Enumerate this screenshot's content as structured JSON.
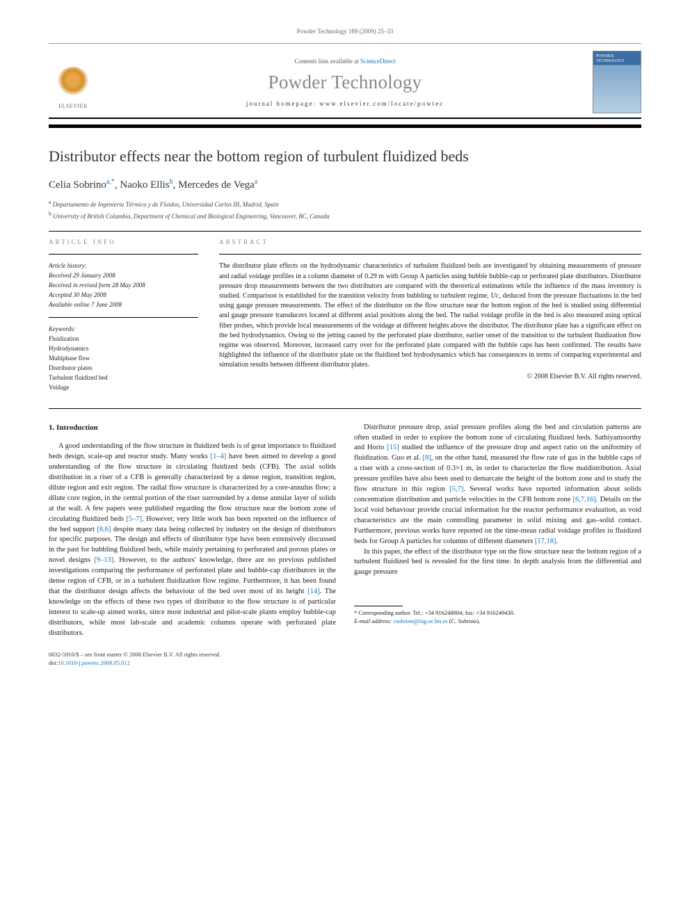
{
  "journal_ref": "Powder Technology 189 (2009) 25–33",
  "contents_prefix": "Contents lists available at ",
  "contents_link": "ScienceDirect",
  "journal_name": "Powder Technology",
  "homepage_prefix": "journal homepage: ",
  "homepage_url": "www.elsevier.com/locate/powtec",
  "publisher_label": "ELSEVIER",
  "cover_label": "POWDER TECHNOLOGY",
  "article_title": "Distributor effects near the bottom region of turbulent fluidized beds",
  "authors_html": "Celia Sobrino",
  "author1": "Celia Sobrino",
  "author1_sup": "a,",
  "author1_star": "*",
  "author2": "Naoko Ellis",
  "author2_sup": "b",
  "author3": "Mercedes de Vega",
  "author3_sup": "a",
  "aff_a": "Departamento de Ingeniería Térmica y de Fluidos, Universidad Carlos III, Madrid, Spain",
  "aff_b": "University of British Columbia, Department of Chemical and Biological Engineering, Vancouver, BC, Canada",
  "article_info_label": "ARTICLE INFO",
  "abstract_label": "ABSTRACT",
  "history_label": "Article history:",
  "history": {
    "received": "Received 29 January 2008",
    "revised": "Received in revised form 28 May 2008",
    "accepted": "Accepted 30 May 2008",
    "online": "Available online 7 June 2008"
  },
  "keywords_label": "Keywords:",
  "keywords": {
    "k1": "Fluidization",
    "k2": "Hydrodynamics",
    "k3": "Multiphase flow",
    "k4": "Distributor plates",
    "k5": "Turbulent fluidized bed",
    "k6": "Voidage"
  },
  "abstract_p1": "The distributor plate effects on the hydrodynamic characteristics of turbulent fluidized beds are investigated by obtaining measurements of pressure and radial voidage profiles in a column diameter of 0.29 m with Group A particles using bubble bubble-cap or perforated plate distributors. Distributor pressure drop measurements between the two distributors are compared with the theoretical estimations while the influence of the mass inventory is studied. Comparison is established for the transition velocity from bubbling to turbulent regime, ",
  "abstract_uc": "Uc",
  "abstract_p1b": ", deduced from the pressure fluctuations in the bed using gauge pressure measurements. The effect of the distributor on the flow structure near the bottom region of the bed is studied using differential and gauge pressure transducers located at different axial positions along the bed. The radial voidage profile in the bed is also measured using optical fiber probes, which provide local measurements of the voidage at different heights above the distributor. The distributor plate has a significant effect on the bed hydrodynamics. Owing to the jetting caused by the perforated plate distributor, earlier onset of the transition to the turbulent fluidization flow regime was observed. Moreover, increased carry over for the perforated plate compared with the bubble caps has been confirmed. The results have highlighted the influence of the distributor plate on the fluidized bed hydrodynamics which has consequences in terms of comparing experimental and simulation results between different distributor plates.",
  "copyright": "© 2008 Elsevier B.V. All rights reserved.",
  "intro_heading": "1. Introduction",
  "intro_p1a": "A good understanding of the flow structure in fluidized beds is of great importance to fluidized beds design, scale-up and reactor study. Many works ",
  "ref_1_4": "[1–4]",
  "intro_p1b": " have been aimed to develop a good understanding of the flow structure in circulating fluidized beds (CFB). The axial solids distribution in a riser of a CFB is generally characterized by a dense region, transition region, dilute region and exit region. The radial flow structure is characterized by a core-annulus flow; a dilute core region, in the central portion of the riser surrounded by a dense annular layer of solids at the wall. A few papers were published regarding the flow structure near the bottom zone of circulating fluidized beds ",
  "ref_5_7": "[5–7]",
  "intro_p1c": ". However, very little work has been reported on the influence of the bed support ",
  "ref_8_6": "[8,6]",
  "intro_p1d": " despite many data being collected by industry on the design of distributors for specific purposes. The design and effects of distributor type have been extensively discussed in the past for bubbling fluidized beds, while mainly pertaining to perforated and porous plates or novel designs ",
  "ref_9_13": "[9–13]",
  "intro_p1e": ". However, to the authors' knowledge, there are no previous published investigations comparing the performance of perforated plate and bubble-cap distributors in the dense region of CFB, or in a turbulent fluidization flow regime. Furthermore, it has been found",
  "col2_p1a": "that the distributor design affects the behaviour of the bed over most of its height ",
  "ref_14": "[14]",
  "col2_p1b": ". The knowledge on the effects of these two types of distributor to the flow structure is of particular interest to scale-up aimed works, since most industrial and pilot-scale plants employ bubble-cap distributors, while most lab-scale and academic columns operate with perforated plate distributors.",
  "col2_p2a": "Distributor pressure drop, axial pressure profiles along the bed and circulation patterns are often studied in order to explore the bottom zone of circulating fluidized beds. Sathiyamoorthy and Horio ",
  "ref_15": "[15]",
  "col2_p2b": " studied the influence of the pressure drop and aspect ratio on the uniformity of fluidization. Guo et al. ",
  "ref_8": "[8]",
  "col2_p2c": ", on the other hand, measured the flow rate of gas in the bubble caps of a riser with a cross-section of 0.3×1 m, in order to characterize the flow maldistribution. Axial pressure profiles have also been used to demarcate the height of the bottom zone and to study the flow structure in this region ",
  "ref_5_7b": "[5,7]",
  "col2_p2d": ". Several works have reported information about solids concentration distribution and particle velocities in the CFB bottom zone ",
  "ref_6_7_16": "[6,7,16]",
  "col2_p2e": ". Details on the local void behaviour provide crucial information for the reactor performance evaluation, as void characteristics are the main controlling parameter in solid mixing and gas–solid contact. Furthermore, previous works have reported on the time-mean radial voidage profiles in fluidized beds for Group A particles for columns of different diameters ",
  "ref_17_18": "[17,18]",
  "col2_p2f": ".",
  "col2_p3": "In this paper, the effect of the distributor type on the flow structure near the bottom region of a turbulent fluidized bed is revealed for the first time. In depth analysis from the differential and gauge pressure",
  "corr_author": "* Corresponding author. Tel.: +34 916248884; fax: +34 916249430.",
  "email_label": "E-mail address: ",
  "email": "csobrino@ing.uc3m.es",
  "email_suffix": " (C. Sobrino).",
  "footer_issn": "0032-5910/$ – see front matter © 2008 Elsevier B.V. All rights reserved.",
  "footer_doi_label": "doi:",
  "footer_doi": "10.1016/j.powtec.2008.05.012"
}
